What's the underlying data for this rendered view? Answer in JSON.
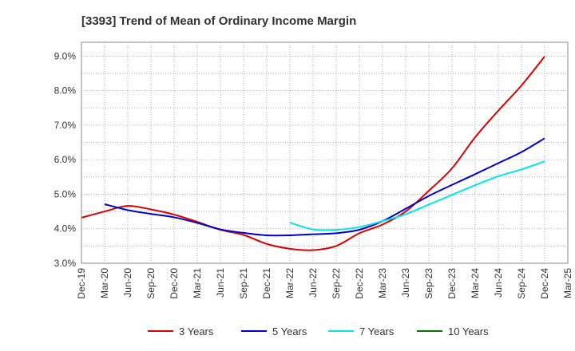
{
  "chart_data": {
    "type": "line",
    "title": "[3393]  Trend of Mean of Ordinary Income Margin",
    "xlabel": "",
    "ylabel": "",
    "x_tick_labels": [
      "Dec-19",
      "Mar-20",
      "Jun-20",
      "Sep-20",
      "Dec-20",
      "Mar-21",
      "Jun-21",
      "Sep-21",
      "Dec-21",
      "Mar-22",
      "Jun-22",
      "Sep-22",
      "Dec-22",
      "Mar-23",
      "Jun-23",
      "Sep-23",
      "Dec-23",
      "Mar-24",
      "Jun-24",
      "Sep-24",
      "Dec-24",
      "Mar-25"
    ],
    "y_tick_labels": [
      "3.0%",
      "4.0%",
      "5.0%",
      "6.0%",
      "7.0%",
      "8.0%",
      "9.0%"
    ],
    "ylim": [
      3.0,
      9.4
    ],
    "y_ticks": [
      3.0,
      4.0,
      5.0,
      6.0,
      7.0,
      8.0,
      9.0
    ],
    "grid": true,
    "legend_position": "bottom",
    "series": [
      {
        "name": "3 Years",
        "color": "#dd0000",
        "points": [
          [
            "Dec-19",
            4.32
          ],
          [
            "Mar-20",
            4.5
          ],
          [
            "Jun-20",
            4.66
          ],
          [
            "Sep-20",
            4.56
          ],
          [
            "Dec-20",
            4.41
          ],
          [
            "Mar-21",
            4.2
          ],
          [
            "Jun-21",
            3.97
          ],
          [
            "Sep-21",
            3.82
          ],
          [
            "Dec-21",
            3.56
          ],
          [
            "Mar-22",
            3.42
          ],
          [
            "Jun-22",
            3.38
          ],
          [
            "Sep-22",
            3.5
          ],
          [
            "Dec-22",
            3.87
          ],
          [
            "Mar-23",
            4.12
          ],
          [
            "Jun-23",
            4.5
          ],
          [
            "Sep-23",
            5.1
          ],
          [
            "Dec-23",
            5.75
          ],
          [
            "Mar-24",
            6.65
          ],
          [
            "Jun-24",
            7.42
          ],
          [
            "Sep-24",
            8.15
          ],
          [
            "Dec-24",
            8.99
          ]
        ]
      },
      {
        "name": "5 Years",
        "color": "#0000cc",
        "points": [
          [
            "Mar-20",
            4.71
          ],
          [
            "Jun-20",
            4.54
          ],
          [
            "Sep-20",
            4.43
          ],
          [
            "Dec-20",
            4.33
          ],
          [
            "Mar-21",
            4.17
          ],
          [
            "Jun-21",
            3.98
          ],
          [
            "Sep-21",
            3.88
          ],
          [
            "Dec-21",
            3.81
          ],
          [
            "Mar-22",
            3.81
          ],
          [
            "Jun-22",
            3.84
          ],
          [
            "Sep-22",
            3.87
          ],
          [
            "Dec-22",
            3.97
          ],
          [
            "Mar-23",
            4.22
          ],
          [
            "Jun-23",
            4.58
          ],
          [
            "Sep-23",
            4.95
          ],
          [
            "Dec-23",
            5.27
          ],
          [
            "Mar-24",
            5.58
          ],
          [
            "Jun-24",
            5.9
          ],
          [
            "Sep-24",
            6.22
          ],
          [
            "Dec-24",
            6.62
          ]
        ]
      },
      {
        "name": "7 Years",
        "color": "#00e5ee",
        "points": [
          [
            "Mar-22",
            4.18
          ],
          [
            "Jun-22",
            3.98
          ],
          [
            "Sep-22",
            3.97
          ],
          [
            "Dec-22",
            4.05
          ],
          [
            "Mar-23",
            4.22
          ],
          [
            "Jun-23",
            4.42
          ],
          [
            "Sep-23",
            4.7
          ],
          [
            "Dec-23",
            4.98
          ],
          [
            "Mar-24",
            5.26
          ],
          [
            "Jun-24",
            5.52
          ],
          [
            "Sep-24",
            5.72
          ],
          [
            "Dec-24",
            5.95
          ]
        ]
      },
      {
        "name": "10 Years",
        "color": "#007700",
        "points": []
      }
    ]
  }
}
